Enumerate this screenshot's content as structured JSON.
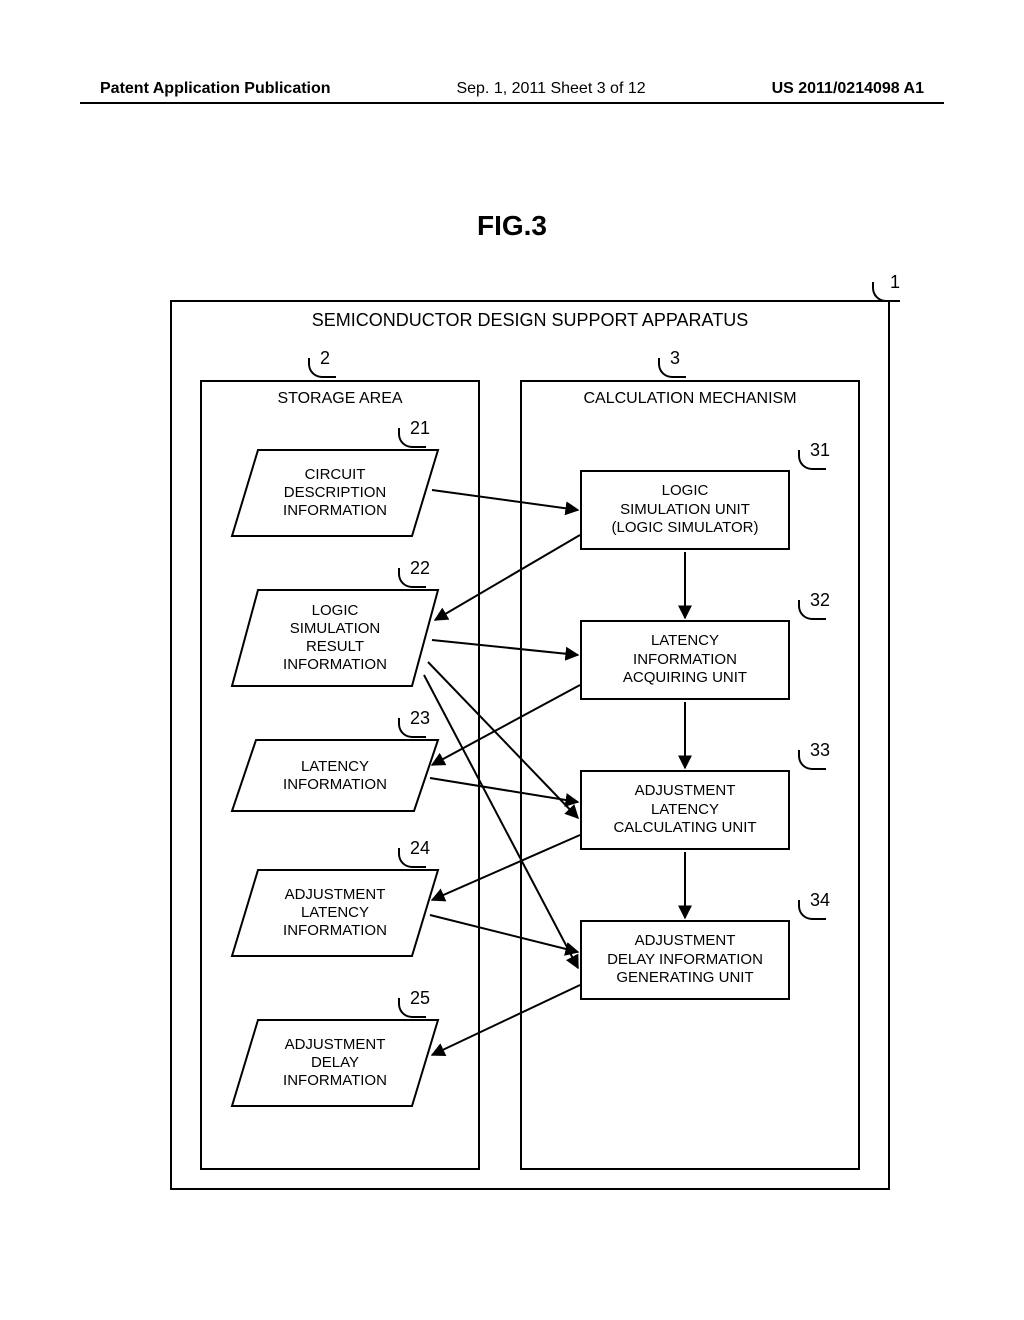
{
  "header": {
    "left": "Patent Application Publication",
    "center": "Sep. 1, 2011  Sheet 3 of 12",
    "right": "US 2011/0214098 A1"
  },
  "figure": {
    "title": "FIG.3",
    "outer": {
      "title": "SEMICONDUCTOR DESIGN SUPPORT APPARATUS",
      "ref": "1"
    },
    "storage": {
      "title": "STORAGE AREA",
      "ref": "2"
    },
    "calc": {
      "title": "CALCULATION MECHANISM",
      "ref": "3"
    },
    "data": {
      "d21": {
        "ref": "21",
        "label": "CIRCUIT\nDESCRIPTION\nINFORMATION"
      },
      "d22": {
        "ref": "22",
        "label": "LOGIC\nSIMULATION\nRESULT\nINFORMATION"
      },
      "d23": {
        "ref": "23",
        "label": "LATENCY\nINFORMATION"
      },
      "d24": {
        "ref": "24",
        "label": "ADJUSTMENT\nLATENCY\nINFORMATION"
      },
      "d25": {
        "ref": "25",
        "label": "ADJUSTMENT\nDELAY\nINFORMATION"
      }
    },
    "proc": {
      "p31": {
        "ref": "31",
        "label": "LOGIC\nSIMULATION UNIT\n(LOGIC SIMULATOR)"
      },
      "p32": {
        "ref": "32",
        "label": "LATENCY\nINFORMATION\nACQUIRING UNIT"
      },
      "p33": {
        "ref": "33",
        "label": "ADJUSTMENT\nLATENCY\nCALCULATING UNIT"
      },
      "p34": {
        "ref": "34",
        "label": "ADJUSTMENT\nDELAY INFORMATION\nGENERATING UNIT"
      }
    }
  },
  "style": {
    "stroke": "#000000",
    "stroke_width": 2,
    "background": "#ffffff",
    "font_size_header": 16,
    "font_size_title": 28,
    "font_size_body": 15,
    "arrow_size": 10
  }
}
